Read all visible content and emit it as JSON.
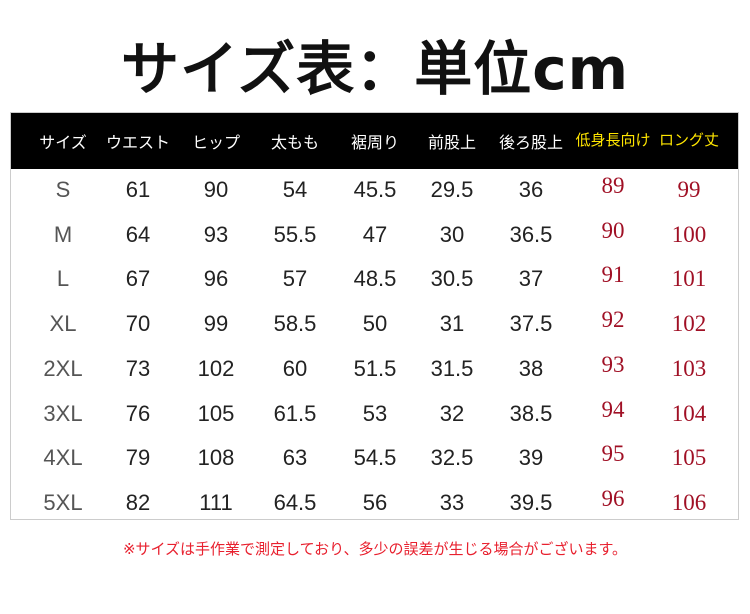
{
  "title": "サイズ表：単位cm",
  "colors": {
    "header_bg": "#000000",
    "header_text": "#ffffff",
    "highlight_header": "#ffe600",
    "highlight_values": "#a01025",
    "note": "#e8202e"
  },
  "table": {
    "headers": [
      "サイズ",
      "ウエスト",
      "ヒップ",
      "太もも",
      "裾周り",
      "前股上",
      "後ろ股上",
      "低身長向け",
      "ロング丈"
    ],
    "rows": [
      [
        "S",
        "61",
        "90",
        "54",
        "45.5",
        "29.5",
        "36",
        "89",
        "99"
      ],
      [
        "M",
        "64",
        "93",
        "55.5",
        "47",
        "30",
        "36.5",
        "90",
        "100"
      ],
      [
        "L",
        "67",
        "96",
        "57",
        "48.5",
        "30.5",
        "37",
        "91",
        "101"
      ],
      [
        "XL",
        "70",
        "99",
        "58.5",
        "50",
        "31",
        "37.5",
        "92",
        "102"
      ],
      [
        "2XL",
        "73",
        "102",
        "60",
        "51.5",
        "31.5",
        "38",
        "93",
        "103"
      ],
      [
        "3XL",
        "76",
        "105",
        "61.5",
        "53",
        "32",
        "38.5",
        "94",
        "104"
      ],
      [
        "4XL",
        "79",
        "108",
        "63",
        "54.5",
        "32.5",
        "39",
        "95",
        "105"
      ],
      [
        "5XL",
        "82",
        "111",
        "64.5",
        "56",
        "33",
        "39.5",
        "96",
        "106"
      ]
    ]
  },
  "note": "※サイズは手作業で測定しており、多少の誤差が生じる場合がございます。"
}
